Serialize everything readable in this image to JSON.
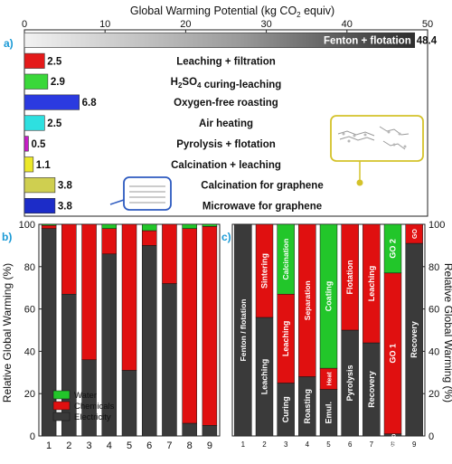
{
  "colors": {
    "electricity": "#3a3a3a",
    "chemicals": "#e01010",
    "water": "#22c62a",
    "accent": "#1a9ad6",
    "callout": "#d4c22a"
  },
  "chart_data": [
    {
      "type": "bar",
      "panel_label": "a)",
      "orientation": "horizontal",
      "title": "Global Warming Potential (kg CO2 equiv)",
      "xlim": [
        0,
        50
      ],
      "xticks": [
        "0",
        "10",
        "20",
        "30",
        "40",
        "50"
      ],
      "grid": false,
      "categories": [
        "Fenton + flotation",
        "Leaching + filtration",
        "H2SO4 curing-leaching",
        "Oxygen-free roasting",
        "Air heating",
        "Pyrolysis + flotation",
        "Calcination + leaching",
        "Calcination for graphene",
        "Microwave for graphene"
      ],
      "values": [
        48.4,
        2.5,
        2.9,
        6.8,
        2.5,
        0.5,
        1.1,
        3.8,
        3.8
      ],
      "value_labels": [
        "48.4",
        "2.5",
        "2.9",
        "6.8",
        "2.5",
        "0.5",
        "1.1",
        "3.8",
        "3.8"
      ],
      "bar_colors": [
        "#8a8a8a",
        "#e41a1a",
        "#3ad83a",
        "#2b3ae0",
        "#2ee0e0",
        "#c81ec8",
        "#ece82a",
        "#cfcf50",
        "#1c2cc8"
      ]
    },
    {
      "type": "bar",
      "stacked": true,
      "panel_label": "b)",
      "ylabel": "Relative Global Warming (%)",
      "ylim": [
        0,
        100
      ],
      "yticks": [
        "0",
        "20",
        "40",
        "60",
        "80",
        "100"
      ],
      "categories": [
        "1",
        "2",
        "3",
        "4",
        "5",
        "6",
        "7",
        "8",
        "9"
      ],
      "legend_position": "lower-left",
      "series": [
        {
          "name": "Electricity",
          "values": [
            98,
            67,
            36,
            86,
            31,
            90,
            72,
            6,
            5
          ]
        },
        {
          "name": "Chemicals",
          "values": [
            1.5,
            33,
            64,
            12,
            69,
            7,
            28,
            92,
            94
          ]
        },
        {
          "name": "Water",
          "values": [
            0.5,
            0,
            0,
            2,
            0,
            3,
            0,
            2,
            1
          ]
        }
      ]
    },
    {
      "type": "bar",
      "stacked": true,
      "panel_label": "c)",
      "ylabel": "Relative Global Warming (%)",
      "ylim": [
        0,
        100
      ],
      "yticks": [
        "0",
        "20",
        "40",
        "60",
        "80",
        "100"
      ],
      "categories": [
        "1",
        "2",
        "3",
        "4",
        "5",
        "6",
        "7",
        "8",
        "9"
      ],
      "bars": [
        {
          "segments": [
            {
              "label": "Fenton / flotation",
              "value": 100,
              "series": "electricity"
            }
          ]
        },
        {
          "segments": [
            {
              "label": "Leaching",
              "value": 56,
              "series": "electricity"
            },
            {
              "label": "Sintering",
              "value": 44,
              "series": "chemicals"
            }
          ]
        },
        {
          "segments": [
            {
              "label": "Curing",
              "value": 25,
              "series": "electricity"
            },
            {
              "label": "Leaching",
              "value": 42,
              "series": "chemicals"
            },
            {
              "label": "Calcination",
              "value": 33,
              "series": "water"
            }
          ]
        },
        {
          "segments": [
            {
              "label": "Roasting",
              "value": 28,
              "series": "electricity"
            },
            {
              "label": "Separation",
              "value": 72,
              "series": "chemicals"
            }
          ]
        },
        {
          "segments": [
            {
              "label": "Emul.",
              "value": 22,
              "series": "electricity"
            },
            {
              "label": "Heat",
              "value": 10,
              "series": "chemicals"
            },
            {
              "label": "Coating",
              "value": 68,
              "series": "water"
            }
          ]
        },
        {
          "segments": [
            {
              "label": "Pyrolysis",
              "value": 50,
              "series": "electricity"
            },
            {
              "label": "Flotation",
              "value": 50,
              "series": "chemicals"
            }
          ]
        },
        {
          "segments": [
            {
              "label": "Recovery",
              "value": 44,
              "series": "electricity"
            },
            {
              "label": "Leaching",
              "value": 56,
              "series": "chemicals"
            }
          ]
        },
        {
          "segments": [
            {
              "label": "Recovery",
              "value": 1,
              "series": "electricity"
            },
            {
              "label": "GO 1",
              "value": 76,
              "series": "chemicals"
            },
            {
              "label": "GO 2",
              "value": 23,
              "series": "water"
            }
          ]
        },
        {
          "segments": [
            {
              "label": "Recovery",
              "value": 91,
              "series": "electricity"
            },
            {
              "label": "GO",
              "value": 9,
              "series": "chemicals"
            }
          ]
        }
      ]
    }
  ]
}
